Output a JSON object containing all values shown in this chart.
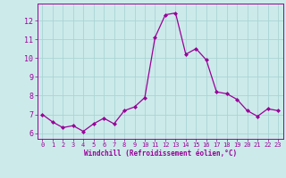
{
  "x": [
    0,
    1,
    2,
    3,
    4,
    5,
    6,
    7,
    8,
    9,
    10,
    11,
    12,
    13,
    14,
    15,
    16,
    17,
    18,
    19,
    20,
    21,
    22,
    23
  ],
  "y": [
    7.0,
    6.6,
    6.3,
    6.4,
    6.1,
    6.5,
    6.8,
    6.5,
    7.2,
    7.4,
    7.9,
    11.1,
    12.3,
    12.4,
    10.2,
    10.5,
    9.9,
    8.2,
    8.1,
    7.8,
    7.2,
    6.9,
    7.3,
    7.2
  ],
  "line_color": "#990099",
  "marker": "D",
  "marker_size": 2,
  "bg_color": "#cceaea",
  "grid_color": "#aad4d4",
  "xlabel": "Windchill (Refroidissement éolien,°C)",
  "ylabel_ticks": [
    6,
    7,
    8,
    9,
    10,
    11,
    12
  ],
  "xlim": [
    -0.5,
    23.5
  ],
  "ylim": [
    5.7,
    12.9
  ]
}
